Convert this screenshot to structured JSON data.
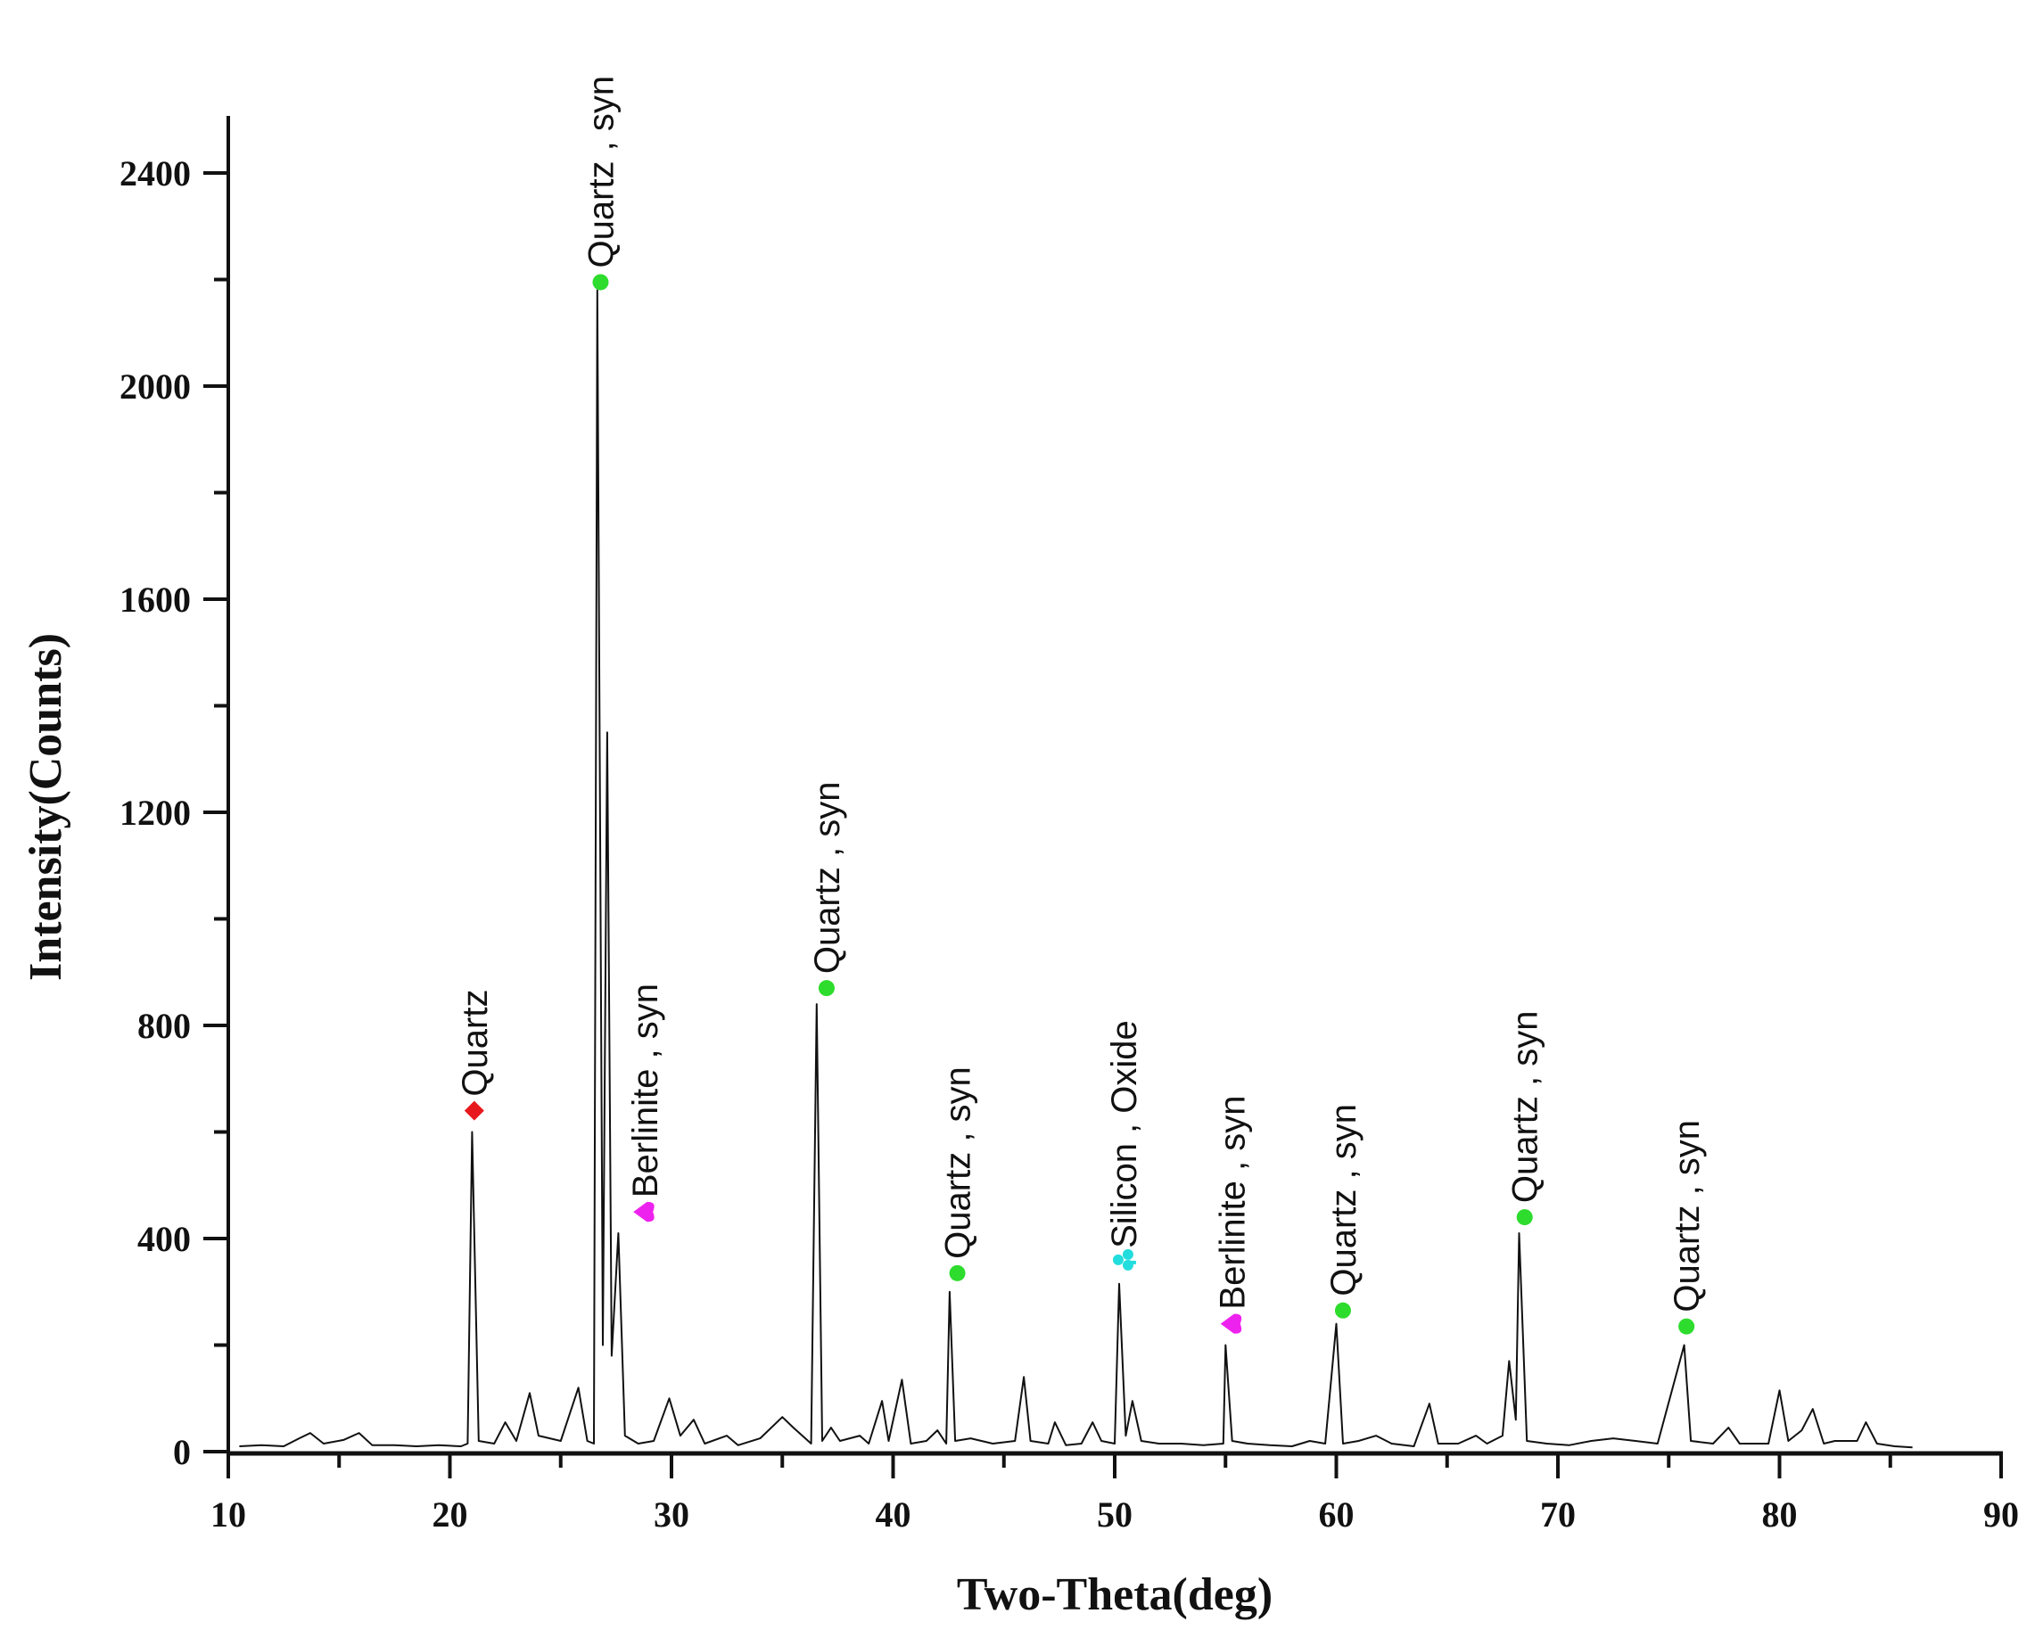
{
  "chart_data": {
    "type": "line",
    "title": "",
    "xlabel": "Two-Theta(deg)",
    "ylabel": "Intensity(Counts)",
    "xlim": [
      10,
      90
    ],
    "ylim": [
      0,
      2500
    ],
    "x_ticks": [
      10,
      20,
      30,
      40,
      50,
      60,
      70,
      80,
      90
    ],
    "y_ticks": [
      0,
      400,
      800,
      1200,
      1600,
      2000,
      2400
    ],
    "grid": false,
    "legend": null,
    "series": [
      {
        "name": "XRD pattern",
        "color": "#000000",
        "points": [
          [
            10.5,
            10
          ],
          [
            11.5,
            12
          ],
          [
            12.5,
            10
          ],
          [
            13.2,
            25
          ],
          [
            13.7,
            35
          ],
          [
            14.3,
            15
          ],
          [
            15.2,
            22
          ],
          [
            15.9,
            35
          ],
          [
            16.5,
            12
          ],
          [
            17.5,
            12
          ],
          [
            18.5,
            10
          ],
          [
            19.5,
            12
          ],
          [
            20.5,
            10
          ],
          [
            20.8,
            15
          ],
          [
            21.0,
            600
          ],
          [
            21.3,
            20
          ],
          [
            22.0,
            15
          ],
          [
            22.5,
            55
          ],
          [
            23.0,
            20
          ],
          [
            23.6,
            110
          ],
          [
            24.0,
            30
          ],
          [
            25.0,
            20
          ],
          [
            25.8,
            120
          ],
          [
            26.2,
            20
          ],
          [
            26.5,
            15
          ],
          [
            26.65,
            2180
          ],
          [
            26.9,
            200
          ],
          [
            27.1,
            1350
          ],
          [
            27.3,
            180
          ],
          [
            27.6,
            410
          ],
          [
            27.9,
            30
          ],
          [
            28.5,
            15
          ],
          [
            29.2,
            20
          ],
          [
            29.9,
            100
          ],
          [
            30.4,
            30
          ],
          [
            31.0,
            60
          ],
          [
            31.5,
            15
          ],
          [
            32.5,
            30
          ],
          [
            33.0,
            12
          ],
          [
            34.0,
            25
          ],
          [
            35.0,
            65
          ],
          [
            35.5,
            45
          ],
          [
            36.3,
            15
          ],
          [
            36.55,
            840
          ],
          [
            36.8,
            20
          ],
          [
            37.2,
            45
          ],
          [
            37.6,
            20
          ],
          [
            38.5,
            30
          ],
          [
            38.9,
            15
          ],
          [
            39.5,
            95
          ],
          [
            39.8,
            20
          ],
          [
            40.4,
            135
          ],
          [
            40.8,
            15
          ],
          [
            41.5,
            20
          ],
          [
            42.0,
            40
          ],
          [
            42.4,
            15
          ],
          [
            42.55,
            300
          ],
          [
            42.8,
            20
          ],
          [
            43.5,
            25
          ],
          [
            44.5,
            15
          ],
          [
            45.5,
            20
          ],
          [
            45.9,
            140
          ],
          [
            46.2,
            20
          ],
          [
            47.0,
            15
          ],
          [
            47.3,
            55
          ],
          [
            47.8,
            12
          ],
          [
            48.5,
            15
          ],
          [
            49.0,
            55
          ],
          [
            49.4,
            20
          ],
          [
            50.0,
            15
          ],
          [
            50.2,
            315
          ],
          [
            50.5,
            30
          ],
          [
            50.8,
            95
          ],
          [
            51.2,
            20
          ],
          [
            52.0,
            15
          ],
          [
            53.0,
            15
          ],
          [
            54.0,
            12
          ],
          [
            54.9,
            15
          ],
          [
            55.0,
            200
          ],
          [
            55.3,
            20
          ],
          [
            56.0,
            15
          ],
          [
            57.0,
            12
          ],
          [
            58.0,
            10
          ],
          [
            58.8,
            20
          ],
          [
            59.5,
            15
          ],
          [
            60.0,
            240
          ],
          [
            60.3,
            15
          ],
          [
            61.0,
            20
          ],
          [
            61.8,
            30
          ],
          [
            62.5,
            15
          ],
          [
            63.5,
            10
          ],
          [
            64.2,
            90
          ],
          [
            64.6,
            15
          ],
          [
            65.5,
            15
          ],
          [
            66.3,
            30
          ],
          [
            66.8,
            15
          ],
          [
            67.5,
            30
          ],
          [
            67.8,
            170
          ],
          [
            68.1,
            60
          ],
          [
            68.25,
            410
          ],
          [
            68.6,
            20
          ],
          [
            69.5,
            15
          ],
          [
            70.5,
            12
          ],
          [
            71.5,
            20
          ],
          [
            72.5,
            25
          ],
          [
            73.5,
            20
          ],
          [
            74.5,
            15
          ],
          [
            75.7,
            200
          ],
          [
            76.0,
            20
          ],
          [
            77.0,
            15
          ],
          [
            77.7,
            45
          ],
          [
            78.2,
            15
          ],
          [
            79.5,
            15
          ],
          [
            80.0,
            115
          ],
          [
            80.4,
            20
          ],
          [
            81.0,
            40
          ],
          [
            81.5,
            80
          ],
          [
            82.0,
            15
          ],
          [
            82.5,
            20
          ],
          [
            83.5,
            20
          ],
          [
            83.9,
            55
          ],
          [
            84.4,
            15
          ],
          [
            85.2,
            10
          ],
          [
            86.0,
            8
          ]
        ]
      }
    ],
    "annotations": [
      {
        "phase": "Quartz",
        "text": "Quartz",
        "x": 21.1,
        "y": 640,
        "marker": "diamond",
        "color": "#e8191e"
      },
      {
        "phase": "Quartz , syn",
        "text": "Quartz , syn",
        "x": 26.8,
        "y": 2195,
        "marker": "circle",
        "color": "#2ddc2d"
      },
      {
        "phase": "Berlinite , syn",
        "text": "Berlinite , syn",
        "x": 28.8,
        "y": 450,
        "marker": "heart",
        "color": "#ee22ee"
      },
      {
        "phase": "Quartz , syn",
        "text": "Quartz , syn",
        "x": 37.0,
        "y": 870,
        "marker": "circle",
        "color": "#2ddc2d"
      },
      {
        "phase": "Quartz , syn",
        "text": "Quartz , syn",
        "x": 42.9,
        "y": 335,
        "marker": "circle",
        "color": "#2ddc2d"
      },
      {
        "phase": "Silicon , Oxide",
        "text": "Silicon , Oxide",
        "x": 50.4,
        "y": 355,
        "marker": "club",
        "color": "#22dddd"
      },
      {
        "phase": "Berlinite , syn",
        "text": "Berlinite , syn",
        "x": 55.3,
        "y": 240,
        "marker": "heart",
        "color": "#ee22ee"
      },
      {
        "phase": "Quartz , syn",
        "text": "Quartz , syn",
        "x": 60.3,
        "y": 265,
        "marker": "circle",
        "color": "#2ddc2d"
      },
      {
        "phase": "Quartz , syn",
        "text": "Quartz , syn",
        "x": 68.5,
        "y": 440,
        "marker": "circle",
        "color": "#2ddc2d"
      },
      {
        "phase": "Quartz , syn",
        "text": "Quartz , syn",
        "x": 75.8,
        "y": 235,
        "marker": "circle",
        "color": "#2ddc2d"
      }
    ]
  },
  "axes": {
    "x_title": "Two-Theta(deg)",
    "y_title": "Intensity(Counts)",
    "x_tick_labels": [
      "10",
      "20",
      "30",
      "40",
      "50",
      "60",
      "70",
      "80",
      "90"
    ],
    "y_tick_labels": [
      "0",
      "400",
      "800",
      "1200",
      "1600",
      "2000",
      "2400"
    ]
  }
}
